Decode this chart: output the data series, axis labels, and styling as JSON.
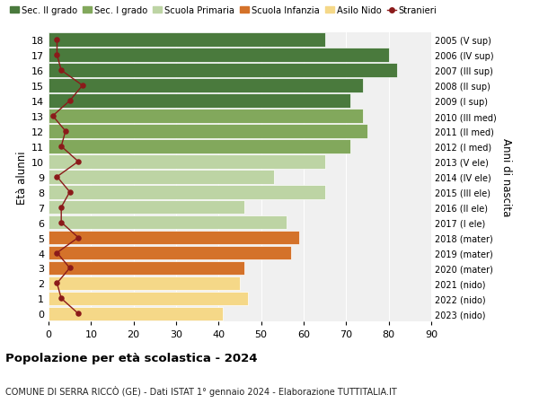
{
  "ages": [
    18,
    17,
    16,
    15,
    14,
    13,
    12,
    11,
    10,
    9,
    8,
    7,
    6,
    5,
    4,
    3,
    2,
    1,
    0
  ],
  "bar_values": [
    65,
    80,
    82,
    74,
    71,
    74,
    75,
    71,
    65,
    53,
    65,
    46,
    56,
    59,
    57,
    46,
    45,
    47,
    41
  ],
  "stranieri": [
    2,
    2,
    3,
    8,
    5,
    1,
    4,
    3,
    7,
    2,
    5,
    3,
    3,
    7,
    2,
    5,
    2,
    3,
    7
  ],
  "right_labels": [
    "2005 (V sup)",
    "2006 (IV sup)",
    "2007 (III sup)",
    "2008 (II sup)",
    "2009 (I sup)",
    "2010 (III med)",
    "2011 (II med)",
    "2012 (I med)",
    "2013 (V ele)",
    "2014 (IV ele)",
    "2015 (III ele)",
    "2016 (II ele)",
    "2017 (I ele)",
    "2018 (mater)",
    "2019 (mater)",
    "2020 (mater)",
    "2021 (nido)",
    "2022 (nido)",
    "2023 (nido)"
  ],
  "colors": {
    "sec2": "#4a7a3d",
    "sec1": "#82a85c",
    "primaria": "#bdd4a4",
    "infanzia": "#d4722a",
    "nido": "#f5d888",
    "stranieri": "#8b1a1a",
    "bg": "#f0f0f0"
  },
  "legend_labels": [
    "Sec. II grado",
    "Sec. I grado",
    "Scuola Primaria",
    "Scuola Infanzia",
    "Asilo Nido",
    "Stranieri"
  ],
  "title": "Popolazione per età scolastica - 2024",
  "subtitle": "COMUNE DI SERRA RICCÒ (GE) - Dati ISTAT 1° gennaio 2024 - Elaborazione TUTTITALIA.IT",
  "ylabel_left": "Età alunni",
  "ylabel_right": "Anni di nascita",
  "xlim": [
    0,
    90
  ],
  "xticks": [
    0,
    10,
    20,
    30,
    40,
    50,
    60,
    70,
    80,
    90
  ]
}
